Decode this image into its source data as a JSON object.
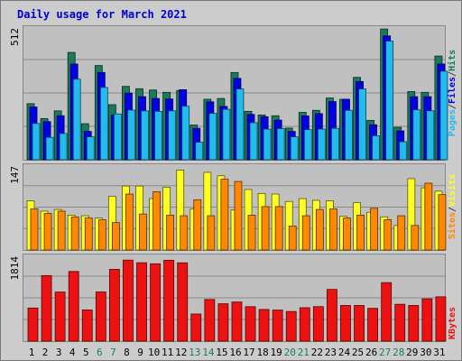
{
  "title": "Daily usage for March 2021",
  "colors": {
    "background": "#cccccc",
    "panel": "#c0c0c0",
    "title": "#0000cc",
    "hits": "#1b7a5a",
    "files": "#0000e6",
    "pages": "#22bbee",
    "visits": "#ffff22",
    "sites": "#ff8800",
    "kbytes": "#ee1111",
    "weekend_label": "#1b7a5a",
    "weekday_label": "#000000",
    "separator": "#444444"
  },
  "panel_labels": {
    "top": [
      "Pages",
      "Files",
      "Hits"
    ],
    "middle": [
      "Sites",
      "Visits"
    ],
    "bottom": [
      "KBytes"
    ],
    "separator": "/"
  },
  "chart_data": [
    {
      "type": "bar",
      "ymax_label": "512",
      "ylim": [
        0,
        512
      ],
      "series": [
        {
          "name": "Hits",
          "values": [
            218,
            160,
            190,
            417,
            140,
            366,
            214,
            285,
            276,
            271,
            262,
            269,
            135,
            235,
            238,
            339,
            188,
            174,
            171,
            123,
            184,
            192,
            240,
            235,
            320,
            153,
            508,
            126,
            265,
            262,
            403
          ]
        },
        {
          "name": "Files",
          "values": [
            205,
            148,
            171,
            372,
            110,
            339,
            173,
            259,
            245,
            238,
            236,
            272,
            122,
            225,
            207,
            316,
            176,
            167,
            154,
            110,
            170,
            179,
            226,
            235,
            304,
            136,
            481,
            112,
            245,
            245,
            372
          ]
        },
        {
          "name": "Pages",
          "values": [
            141,
            87,
            102,
            313,
            89,
            281,
            178,
            193,
            190,
            188,
            190,
            208,
            68,
            180,
            196,
            275,
            144,
            119,
            121,
            89,
            117,
            119,
            122,
            192,
            275,
            93,
            461,
            70,
            194,
            190,
            344
          ]
        }
      ]
    },
    {
      "type": "bar",
      "ymax_label": "147",
      "ylim": [
        0,
        147
      ],
      "series": [
        {
          "name": "Visits",
          "values": [
            86,
            68,
            71,
            61,
            60,
            56,
            94,
            112,
            112,
            90,
            110,
            140,
            72,
            136,
            130,
            70,
            106,
            99,
            98,
            85,
            90,
            87,
            86,
            59,
            83,
            66,
            58,
            43,
            125,
            109,
            103
          ]
        },
        {
          "name": "Sites",
          "values": [
            72,
            64,
            68,
            58,
            56,
            53,
            48,
            98,
            63,
            102,
            61,
            60,
            88,
            60,
            124,
            120,
            61,
            76,
            76,
            42,
            60,
            71,
            72,
            56,
            61,
            73,
            53,
            60,
            43,
            117,
            97
          ]
        }
      ]
    },
    {
      "type": "bar",
      "ymax_label": "1814",
      "ylim": [
        0,
        1814
      ],
      "series": [
        {
          "name": "KBytes",
          "values": [
            708,
            1402,
            1050,
            1490,
            667,
            1052,
            1535,
            1733,
            1677,
            1654,
            1730,
            1675,
            580,
            891,
            799,
            837,
            737,
            677,
            665,
            634,
            715,
            738,
            1106,
            763,
            763,
            701,
            1251,
            788,
            763,
            905,
            948
          ]
        }
      ]
    }
  ],
  "x_labels": [
    "1",
    "2",
    "3",
    "4",
    "5",
    "6",
    "7",
    "8",
    "9",
    "10",
    "11",
    "12",
    "13",
    "14",
    "15",
    "16",
    "17",
    "18",
    "19",
    "20",
    "21",
    "22",
    "23",
    "24",
    "25",
    "26",
    "27",
    "28",
    "29",
    "30",
    "31"
  ],
  "weekend_days": [
    6,
    7,
    13,
    14,
    20,
    21,
    27,
    28
  ]
}
